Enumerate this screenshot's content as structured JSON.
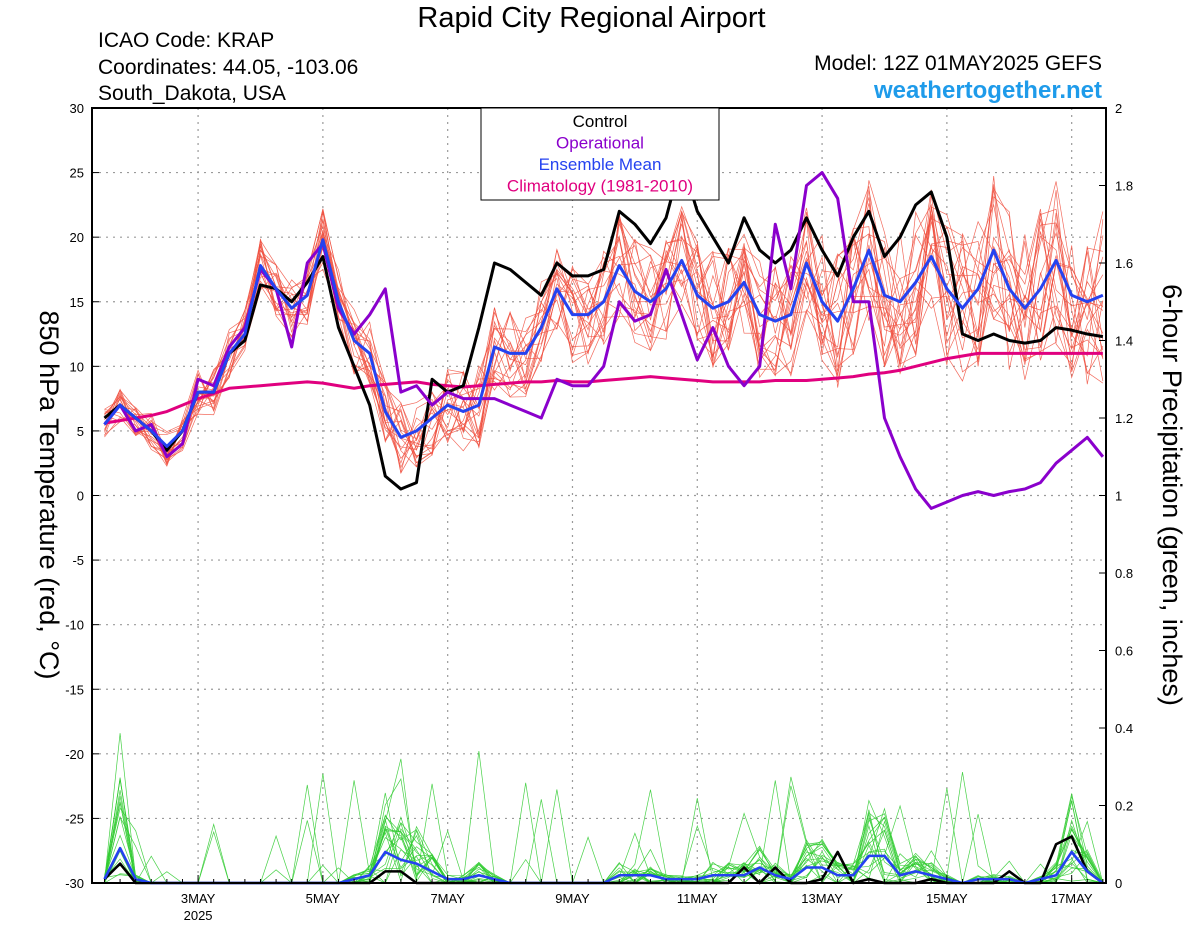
{
  "header": {
    "title": "Rapid City Regional Airport",
    "icao": "ICAO Code: KRAP",
    "coordinates": "Coordinates: 44.05, -103.06",
    "region": "South_Dakota, USA",
    "model": "Model: 12Z 01MAY2025 GEFS",
    "website": "weathertogether.net"
  },
  "chart_data": {
    "type": "line",
    "ylabel": "850 hPa Temperature (red, °C)",
    "y2label": "6-hour Precipitation (green, inches)",
    "ylim": [
      -30,
      30
    ],
    "y2lim": [
      0,
      2
    ],
    "y_ticks": [
      "30",
      "25",
      "20",
      "15",
      "10",
      "5",
      "0",
      "-5",
      "-10",
      "-15",
      "-20",
      "-25",
      "-30"
    ],
    "y2_ticks": [
      "2",
      "1.8",
      "1.6",
      "1.4",
      "1.2",
      "1",
      "0.8",
      "0.6",
      "0.4",
      "0.2",
      "0"
    ],
    "x_ticks": [
      "3MAY",
      "5MAY",
      "7MAY",
      "9MAY",
      "11MAY",
      "13MAY",
      "15MAY",
      "17MAY"
    ],
    "x_year": "2025",
    "grid": true,
    "legend_position": "top-center",
    "legend": [
      {
        "label": "Control",
        "color": "#000000"
      },
      {
        "label": "Operational",
        "color": "#8A00CC"
      },
      {
        "label": "Ensemble Mean",
        "color": "#2442F0"
      },
      {
        "label": "Climatology (1981-2010)",
        "color": "#E0007F"
      }
    ],
    "x_days": [
      1.5,
      1.75,
      2.0,
      2.25,
      2.5,
      2.75,
      3.0,
      3.25,
      3.5,
      3.75,
      4.0,
      4.25,
      4.5,
      4.75,
      5.0,
      5.25,
      5.5,
      5.75,
      6.0,
      6.25,
      6.5,
      6.75,
      7.0,
      7.25,
      7.5,
      7.75,
      8.0,
      8.25,
      8.5,
      8.75,
      9.0,
      9.25,
      9.5,
      9.75,
      10.0,
      10.25,
      10.5,
      10.75,
      11.0,
      11.25,
      11.5,
      11.75,
      12.0,
      12.25,
      12.5,
      12.75,
      13.0,
      13.25,
      13.5,
      13.75,
      14.0,
      14.25,
      14.5,
      14.75,
      15.0,
      15.25,
      15.5,
      15.75,
      16.0,
      16.25,
      16.5,
      16.75,
      17.0,
      17.25,
      17.5
    ],
    "series": [
      {
        "name": "Control",
        "role": "temperature",
        "color": "#000000",
        "values": [
          6.0,
          7.0,
          6.0,
          5.0,
          3.5,
          5.0,
          8.0,
          8.0,
          11.0,
          12.0,
          16.3,
          16.0,
          15.0,
          16.5,
          18.5,
          13.0,
          10.0,
          7.0,
          1.5,
          0.5,
          1.0,
          9.0,
          8.0,
          8.5,
          13.0,
          18.0,
          17.5,
          16.5,
          15.5,
          18.0,
          17.0,
          17.0,
          17.5,
          22.0,
          21.0,
          19.5,
          21.5,
          26.0,
          22.0,
          20.0,
          18.0,
          21.5,
          19.0,
          18.0,
          19.0,
          21.5,
          19.0,
          17.0,
          20.0,
          22.0,
          18.5,
          20.0,
          22.5,
          23.5,
          20.0,
          12.5,
          12.0,
          12.5,
          12.0,
          11.8,
          12.0,
          13.0,
          12.8,
          12.5,
          12.3
        ]
      },
      {
        "name": "Operational",
        "role": "temperature",
        "color": "#8A00CC",
        "values": [
          5.5,
          7.0,
          5.0,
          5.5,
          3.0,
          4.0,
          9.0,
          8.5,
          11.5,
          13.0,
          17.5,
          16.0,
          11.5,
          18.0,
          19.5,
          14.5,
          12.5,
          14.0,
          16.0,
          8.0,
          8.5,
          7.0,
          8.0,
          7.5,
          7.5,
          7.5,
          7.0,
          6.5,
          6.0,
          9.0,
          8.5,
          8.5,
          10.0,
          15.0,
          13.5,
          14.0,
          17.5,
          14.0,
          10.5,
          13.0,
          10.0,
          8.5,
          10.0,
          21.0,
          16.0,
          24.0,
          25.0,
          23.0,
          15.0,
          15.0,
          6.0,
          3.0,
          0.5,
          -1.0,
          -0.5,
          0.0,
          0.3,
          0.0,
          0.3,
          0.5,
          1.0,
          2.5,
          3.5,
          4.5,
          3.0
        ]
      },
      {
        "name": "Ensemble Mean",
        "role": "temperature",
        "color": "#2442F0",
        "values": [
          5.5,
          7.0,
          6.0,
          5.0,
          3.8,
          5.0,
          8.0,
          8.0,
          11.0,
          12.5,
          17.8,
          16.0,
          14.5,
          15.5,
          19.8,
          15.0,
          12.0,
          11.0,
          6.5,
          4.5,
          5.0,
          6.0,
          7.0,
          6.5,
          7.0,
          11.5,
          11.0,
          11.0,
          13.0,
          16.0,
          14.0,
          14.0,
          15.0,
          17.8,
          15.8,
          15.0,
          16.0,
          18.2,
          15.5,
          14.5,
          15.0,
          16.5,
          14.0,
          13.5,
          14.0,
          18.0,
          15.0,
          13.5,
          16.0,
          19.0,
          15.5,
          15.0,
          16.5,
          18.5,
          16.0,
          14.5,
          16.0,
          19.0,
          16.0,
          14.5,
          16.0,
          18.2,
          15.5,
          15.0,
          15.5
        ]
      },
      {
        "name": "Climatology (1981-2010)",
        "role": "temperature",
        "color": "#E0007F",
        "values": [
          5.6,
          5.8,
          6.0,
          6.2,
          6.5,
          7.0,
          7.5,
          7.9,
          8.3,
          8.4,
          8.5,
          8.6,
          8.7,
          8.8,
          8.7,
          8.5,
          8.3,
          8.5,
          8.6,
          8.7,
          8.8,
          8.6,
          8.5,
          8.4,
          8.5,
          8.6,
          8.7,
          8.8,
          8.8,
          8.9,
          8.8,
          8.8,
          8.9,
          9.0,
          9.1,
          9.2,
          9.1,
          9.0,
          8.9,
          8.8,
          8.8,
          8.8,
          8.8,
          8.9,
          8.9,
          8.9,
          9.0,
          9.1,
          9.2,
          9.4,
          9.5,
          9.7,
          10.0,
          10.3,
          10.6,
          10.8,
          11.0,
          11.0,
          11.0,
          11.0,
          11.0,
          11.0,
          11.0,
          11.0,
          11.0
        ]
      },
      {
        "name": "Control",
        "role": "precipitation",
        "color": "#000000",
        "values": [
          0.01,
          0.05,
          0.0,
          0.0,
          0.0,
          0.0,
          0.0,
          0.0,
          0.0,
          0.0,
          0.0,
          0.0,
          0.0,
          0.0,
          0.0,
          0.0,
          0.0,
          0.0,
          0.03,
          0.03,
          0.0,
          0.0,
          0.0,
          0.0,
          0.0,
          0.0,
          0.0,
          0.0,
          0.0,
          0.0,
          0.0,
          0.0,
          0.0,
          0.0,
          0.0,
          0.0,
          0.0,
          0.0,
          0.0,
          0.0,
          0.0,
          0.04,
          0.0,
          0.04,
          0.0,
          0.0,
          0.01,
          0.08,
          0.0,
          0.01,
          0.0,
          0.0,
          0.0,
          0.01,
          0.0,
          0.0,
          0.0,
          0.0,
          0.03,
          0.0,
          0.0,
          0.1,
          0.12,
          0.03,
          0.0
        ]
      },
      {
        "name": "Ensemble Mean",
        "role": "precipitation",
        "color": "#2442F0",
        "values": [
          0.01,
          0.09,
          0.01,
          0.0,
          0.0,
          0.0,
          0.0,
          0.0,
          0.0,
          0.0,
          0.0,
          0.0,
          0.0,
          0.0,
          0.0,
          0.0,
          0.01,
          0.02,
          0.08,
          0.06,
          0.05,
          0.03,
          0.01,
          0.01,
          0.02,
          0.01,
          0.0,
          0.0,
          0.0,
          0.0,
          0.0,
          0.0,
          0.0,
          0.02,
          0.02,
          0.02,
          0.01,
          0.01,
          0.01,
          0.02,
          0.02,
          0.02,
          0.04,
          0.02,
          0.01,
          0.04,
          0.04,
          0.02,
          0.02,
          0.07,
          0.07,
          0.02,
          0.03,
          0.02,
          0.01,
          0.0,
          0.01,
          0.01,
          0.01,
          0.0,
          0.01,
          0.02,
          0.08,
          0.03,
          0.0
        ]
      }
    ]
  }
}
